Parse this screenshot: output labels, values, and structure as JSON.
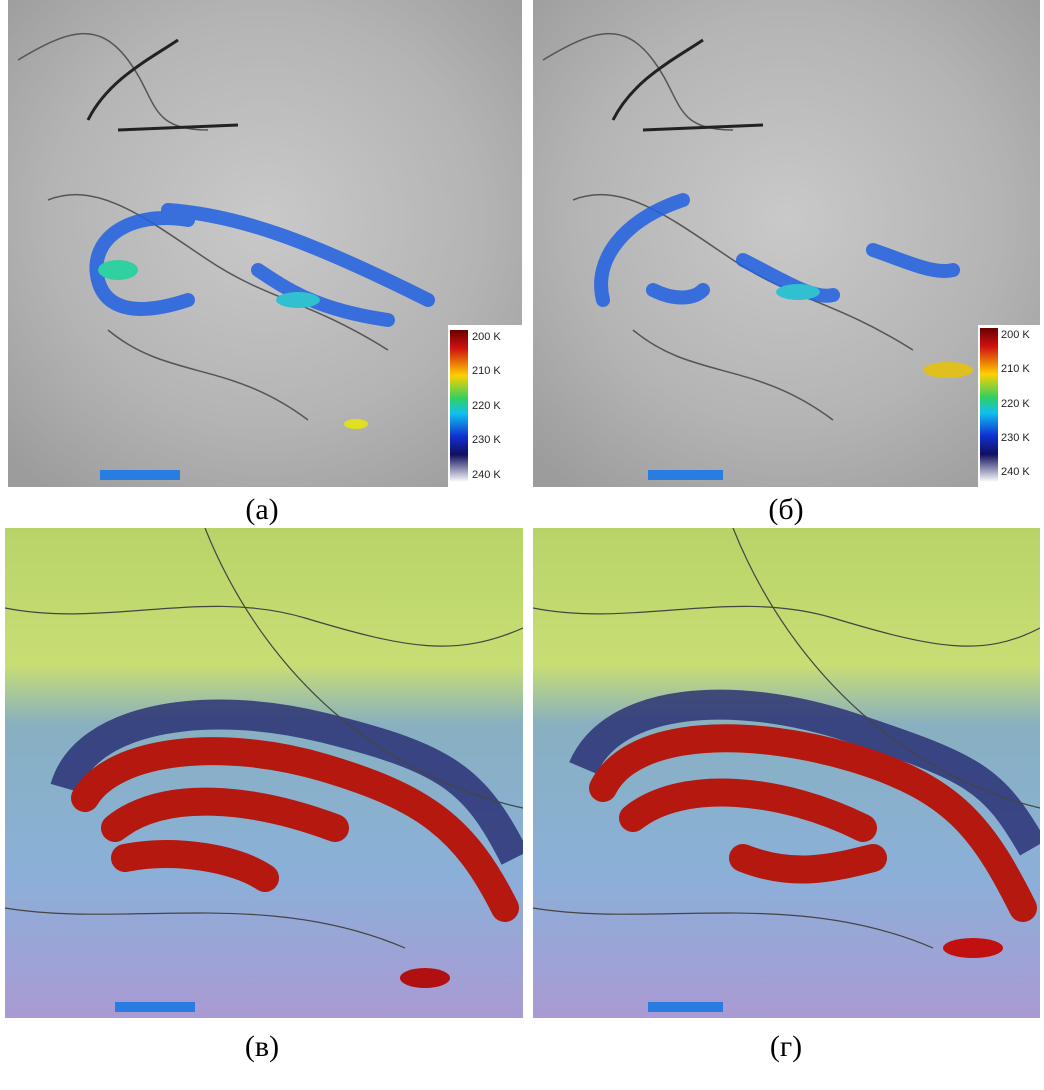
{
  "panels": [
    {
      "caption": "(а)",
      "colorbar": [
        "200 K",
        "210 K",
        "220 K",
        "230 K",
        "240 K"
      ]
    },
    {
      "caption": "(б)",
      "colorbar": [
        "200 K",
        "210 K",
        "220 K",
        "230 K",
        "240 K"
      ]
    },
    {
      "caption": "(в)"
    },
    {
      "caption": "(г)"
    }
  ]
}
